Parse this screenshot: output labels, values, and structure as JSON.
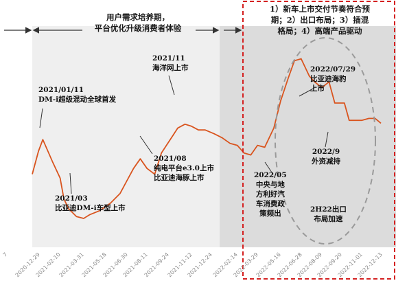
{
  "phases": {
    "middle": "用户需求培养期，\n平台优化升级消费者体验",
    "right": "1）新车上市交付节奏符合预\n期；2）出口布局；3）插混\n格局；4）高端产品驱动"
  },
  "annotations": [
    {
      "id": "a1",
      "text": "2021/01/11\nDM-i超级混动全球首发"
    },
    {
      "id": "a2",
      "text": "2021/03\n比亚迪DM-i车型上市"
    },
    {
      "id": "a3",
      "text": "2021/08\n纯电平台e3.0上市\n比亚迪海豚上市"
    },
    {
      "id": "a4",
      "text": "2021/11\n海洋网上市"
    },
    {
      "id": "a5",
      "text": "2022/05\n中央与地\n方利好汽\n车消费政\n策频出"
    },
    {
      "id": "a6",
      "text": "2022/07/29\n比亚迪海豹\n上市"
    },
    {
      "id": "a7",
      "text": "2022/9\n外资减持"
    },
    {
      "id": "a8",
      "text": "2H22出口\n布局加速"
    }
  ],
  "colors": {
    "line": "#d9541e",
    "shade_left": "#efefef",
    "shade_right": "#dcdcdc",
    "dashed_box": "#d42020",
    "ellipse": "#9a9a9a",
    "arrow": "#333333",
    "tick_text": "#8a8a8a"
  },
  "chart_data": {
    "type": "line",
    "x_ticks": [
      "2020-12-29",
      "2021-02-10",
      "2021-03-31",
      "2021-05-18",
      "2021-06-30",
      "2021-08-11",
      "2021-09-24",
      "2021-11-12",
      "2021-12-24",
      "2022-02-14",
      "2022-03-29",
      "2022-05-16",
      "2022-06-28",
      "2022-08-09",
      "2022-09-20",
      "2022-11-01",
      "2022-12-13"
    ],
    "x_ticks_partial": [
      "7"
    ],
    "x": [
      "2020-12-29",
      "2021-01-11",
      "2021-01-20",
      "2021-02-10",
      "2021-02-25",
      "2021-03-05",
      "2021-03-15",
      "2021-03-31",
      "2021-04-15",
      "2021-04-28",
      "2021-05-18",
      "2021-06-10",
      "2021-06-30",
      "2021-07-15",
      "2021-07-28",
      "2021-08-11",
      "2021-08-25",
      "2021-09-10",
      "2021-09-24",
      "2021-10-15",
      "2021-10-28",
      "2021-11-12",
      "2021-11-25",
      "2021-12-10",
      "2021-12-24",
      "2022-01-12",
      "2022-01-28",
      "2022-02-14",
      "2022-03-01",
      "2022-03-15",
      "2022-03-29",
      "2022-04-12",
      "2022-04-27",
      "2022-05-16",
      "2022-05-30",
      "2022-06-15",
      "2022-06-28",
      "2022-07-12",
      "2022-07-29",
      "2022-08-09",
      "2022-08-24",
      "2022-09-08",
      "2022-09-20",
      "2022-10-10",
      "2022-10-20",
      "2022-11-01",
      "2022-11-15",
      "2022-11-30",
      "2022-12-13",
      "2022-12-25"
    ],
    "y": [
      176,
      200,
      212,
      188,
      172,
      150,
      140,
      132,
      130,
      134,
      138,
      146,
      156,
      170,
      182,
      192,
      182,
      176,
      198,
      214,
      224,
      228,
      226,
      222,
      222,
      218,
      214,
      208,
      206,
      198,
      196,
      206,
      204,
      224,
      252,
      276,
      294,
      296,
      278,
      272,
      266,
      272,
      250,
      250,
      232,
      232,
      232,
      234,
      234,
      229
    ],
    "ylim": [
      100,
      330
    ],
    "regions": [
      {
        "from": "2021-02-10",
        "to": "2022-02-14"
      },
      {
        "from": "2022-02-14",
        "to": "2022-12-25"
      }
    ]
  }
}
